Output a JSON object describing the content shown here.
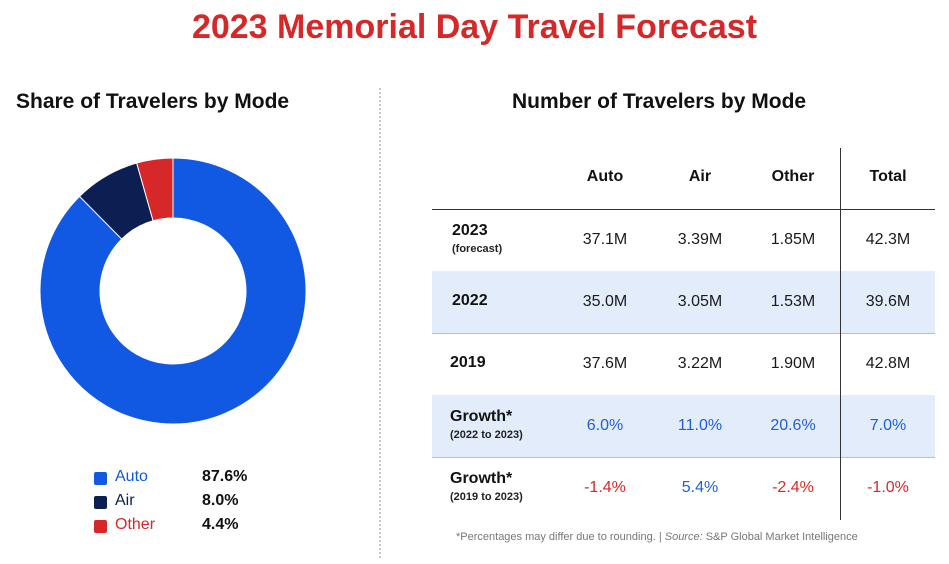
{
  "title": "2023 Memorial Day Travel Forecast",
  "left_heading": "Share of Travelers by Mode",
  "right_heading": "Number of Travelers by Mode",
  "colors": {
    "auto": "#1158e3",
    "air": "#0b1f52",
    "other": "#d62828",
    "neg": "#d62828",
    "pos": "#1f5fd6"
  },
  "chart_data": [
    {
      "type": "pie",
      "title": "Share of Travelers by Mode",
      "donut": true,
      "slices": [
        {
          "label": "Auto",
          "value": 87.6,
          "display": "87.6%"
        },
        {
          "label": "Air",
          "value": 8.0,
          "display": "8.0%"
        },
        {
          "label": "Other",
          "value": 4.4,
          "display": "4.4%"
        }
      ],
      "legend_position": "bottom"
    },
    {
      "type": "table",
      "title": "Number of Travelers by Mode",
      "columns": [
        "Auto",
        "Air",
        "Other",
        "Total"
      ],
      "rows": [
        {
          "label": "2023",
          "sub": "(forecast)",
          "values": [
            "37.1M",
            "3.39M",
            "1.85M",
            "42.3M"
          ],
          "kind": "normal"
        },
        {
          "label": "2022",
          "sub": "",
          "values": [
            "35.0M",
            "3.05M",
            "1.53M",
            "39.6M"
          ],
          "kind": "normal"
        },
        {
          "label": "2019",
          "sub": "",
          "values": [
            "37.6M",
            "3.22M",
            "1.90M",
            "42.8M"
          ],
          "kind": "normal"
        },
        {
          "label": "Growth*",
          "sub": "(2022 to 2023)",
          "values": [
            "6.0%",
            "11.0%",
            "20.6%",
            "7.0%"
          ],
          "kind": "growth"
        },
        {
          "label": "Growth*",
          "sub": "(2019 to 2023)",
          "values": [
            "-1.4%",
            "5.4%",
            "-2.4%",
            "-1.0%"
          ],
          "kind": "growth"
        }
      ]
    }
  ],
  "footnote": {
    "prefix": "*Percentages may differ due to rounding. | ",
    "source_label": "Source:",
    "source_text": " S&P Global Market Intelligence"
  }
}
